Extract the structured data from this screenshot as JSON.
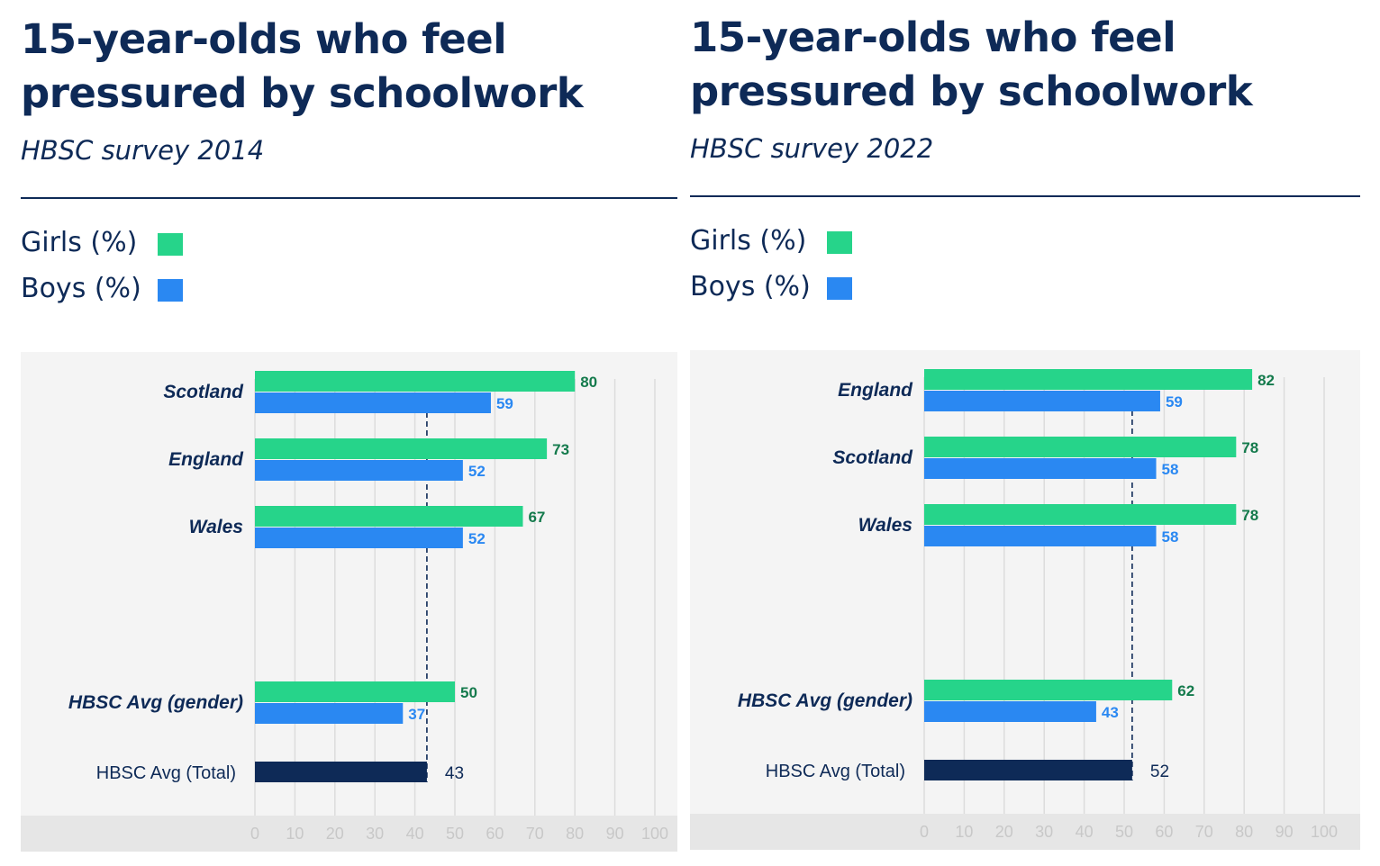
{
  "charts": [
    {
      "title": "15-year-olds who feel pressured by schoolwork",
      "subtitle": "HBSC survey 2014",
      "legend": [
        {
          "label": "Girls (%)",
          "color": "#26d48a"
        },
        {
          "label": "Boys (%)",
          "color": "#2a88f2"
        }
      ]
    },
    {
      "title": "15-year-olds who feel pressured by schoolwork",
      "subtitle": "HBSC survey 2022",
      "legend": [
        {
          "label": "Girls (%)",
          "color": "#26d48a"
        },
        {
          "label": "Boys (%)",
          "color": "#2a88f2"
        }
      ]
    }
  ],
  "chart_data": [
    {
      "type": "bar",
      "orientation": "horizontal",
      "title": "15-year-olds who feel pressured by schoolwork",
      "subtitle": "HBSC survey 2014",
      "categories": [
        "Scotland",
        "England",
        "Wales",
        "HBSC Avg (gender)"
      ],
      "series": [
        {
          "name": "Girls (%)",
          "color": "#26d48a",
          "values": [
            80,
            73,
            67,
            50
          ]
        },
        {
          "name": "Boys (%)",
          "color": "#2a88f2",
          "values": [
            59,
            52,
            52,
            37
          ]
        }
      ],
      "total": {
        "label": "HBSC Avg (Total)",
        "value": 43,
        "color": "#0e2a57"
      },
      "reference_line": 43,
      "xlim": [
        0,
        100
      ],
      "xticks": [
        0,
        10,
        20,
        30,
        40,
        50,
        60,
        70,
        80,
        90,
        100
      ],
      "grid": true,
      "legend": "top-left"
    },
    {
      "type": "bar",
      "orientation": "horizontal",
      "title": "15-year-olds who feel pressured by schoolwork",
      "subtitle": "HBSC survey 2022",
      "categories": [
        "England",
        "Scotland",
        "Wales",
        "HBSC Avg (gender)"
      ],
      "series": [
        {
          "name": "Girls (%)",
          "color": "#26d48a",
          "values": [
            82,
            78,
            78,
            62
          ]
        },
        {
          "name": "Boys (%)",
          "color": "#2a88f2",
          "values": [
            59,
            58,
            58,
            43
          ]
        }
      ],
      "total": {
        "label": "HBSC Avg (Total)",
        "value": 52,
        "color": "#0e2a57"
      },
      "reference_line": 52,
      "xlim": [
        0,
        100
      ],
      "xticks": [
        0,
        10,
        20,
        30,
        40,
        50,
        60,
        70,
        80,
        90,
        100
      ],
      "grid": true,
      "legend": "top-left"
    }
  ]
}
